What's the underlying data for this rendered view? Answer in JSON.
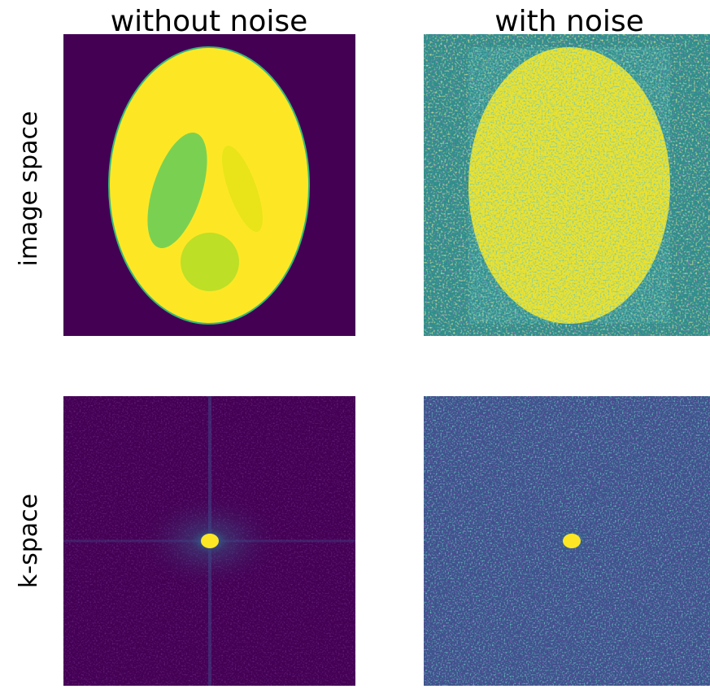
{
  "column_titles": [
    "without noise",
    "with noise"
  ],
  "row_labels": [
    "image space",
    "k-space"
  ]
}
